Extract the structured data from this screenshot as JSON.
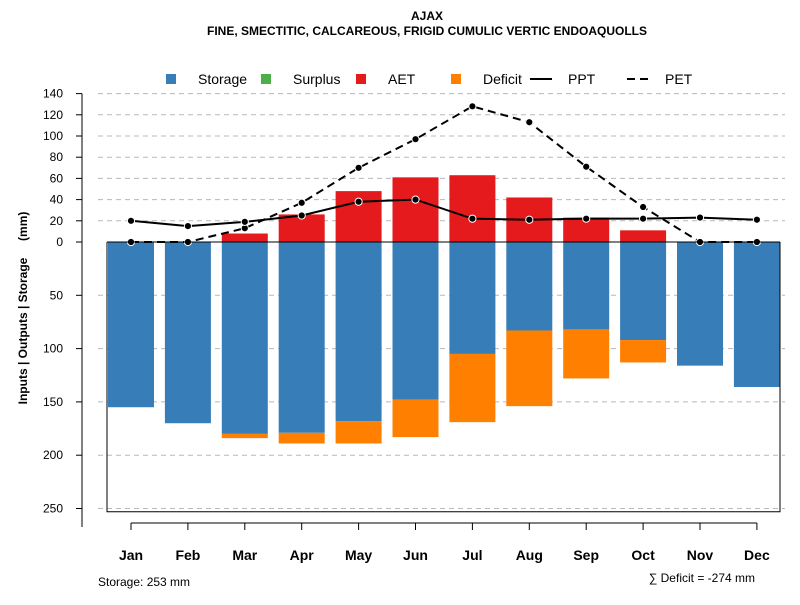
{
  "chart_data": {
    "type": "bar",
    "title": "AJAX",
    "subtitle": "FINE, SMECTITIC, CALCAREOUS, FRIGID CUMULIC VERTIC ENDOAQUOLLS",
    "ylabel": "Inputs | Outputs | Storage     (mm)",
    "categories": [
      "Jan",
      "Feb",
      "Mar",
      "Apr",
      "May",
      "Jun",
      "Jul",
      "Aug",
      "Sep",
      "Oct",
      "Nov",
      "Dec"
    ],
    "upper_ticks": [
      0,
      20,
      40,
      60,
      80,
      100,
      120,
      140
    ],
    "lower_ticks": [
      50,
      100,
      150,
      200,
      250
    ],
    "ylim_upper": [
      0,
      140
    ],
    "ylim_lower": [
      0,
      253
    ],
    "legend": [
      {
        "key": "storage",
        "label": "Storage",
        "type": "square",
        "color": "#377eb8"
      },
      {
        "key": "surplus",
        "label": "Surplus",
        "type": "square",
        "color": "#4daf4a"
      },
      {
        "key": "aet",
        "label": "AET",
        "type": "square",
        "color": "#e41a1c"
      },
      {
        "key": "deficit",
        "label": "Deficit",
        "type": "square",
        "color": "#ff7f00"
      },
      {
        "key": "ppt",
        "label": "PPT",
        "type": "solid-line",
        "color": "#000000"
      },
      {
        "key": "pet",
        "label": "PET",
        "type": "dashed-line",
        "color": "#000000"
      }
    ],
    "series": [
      {
        "name": "AET",
        "color": "#e41a1c",
        "values": [
          0,
          0,
          8,
          26,
          48,
          61,
          63,
          42,
          23,
          11,
          0,
          0
        ]
      },
      {
        "name": "Storage",
        "color": "#377eb8",
        "values": [
          155,
          170,
          180,
          179,
          168,
          148,
          105,
          83,
          82,
          92,
          116,
          136
        ]
      },
      {
        "name": "Deficit",
        "color": "#ff7f00",
        "values": [
          0,
          0,
          4,
          10,
          21,
          35,
          64,
          71,
          46,
          21,
          0,
          0
        ]
      },
      {
        "name": "Surplus",
        "color": "#4daf4a",
        "values": [
          0,
          0,
          0,
          0,
          0,
          0,
          0,
          0,
          0,
          0,
          0,
          0
        ]
      },
      {
        "name": "PPT",
        "color": "#000000",
        "values": [
          20,
          15,
          19,
          25,
          38,
          40,
          22,
          21,
          22,
          22,
          23,
          21
        ]
      },
      {
        "name": "PET",
        "color": "#000000",
        "values": [
          0,
          0,
          13,
          37,
          70,
          97,
          128,
          113,
          71,
          33,
          0,
          0
        ]
      }
    ],
    "footer_left": "Storage: 253 mm",
    "footer_right": "∑ Deficit = -274 mm"
  }
}
